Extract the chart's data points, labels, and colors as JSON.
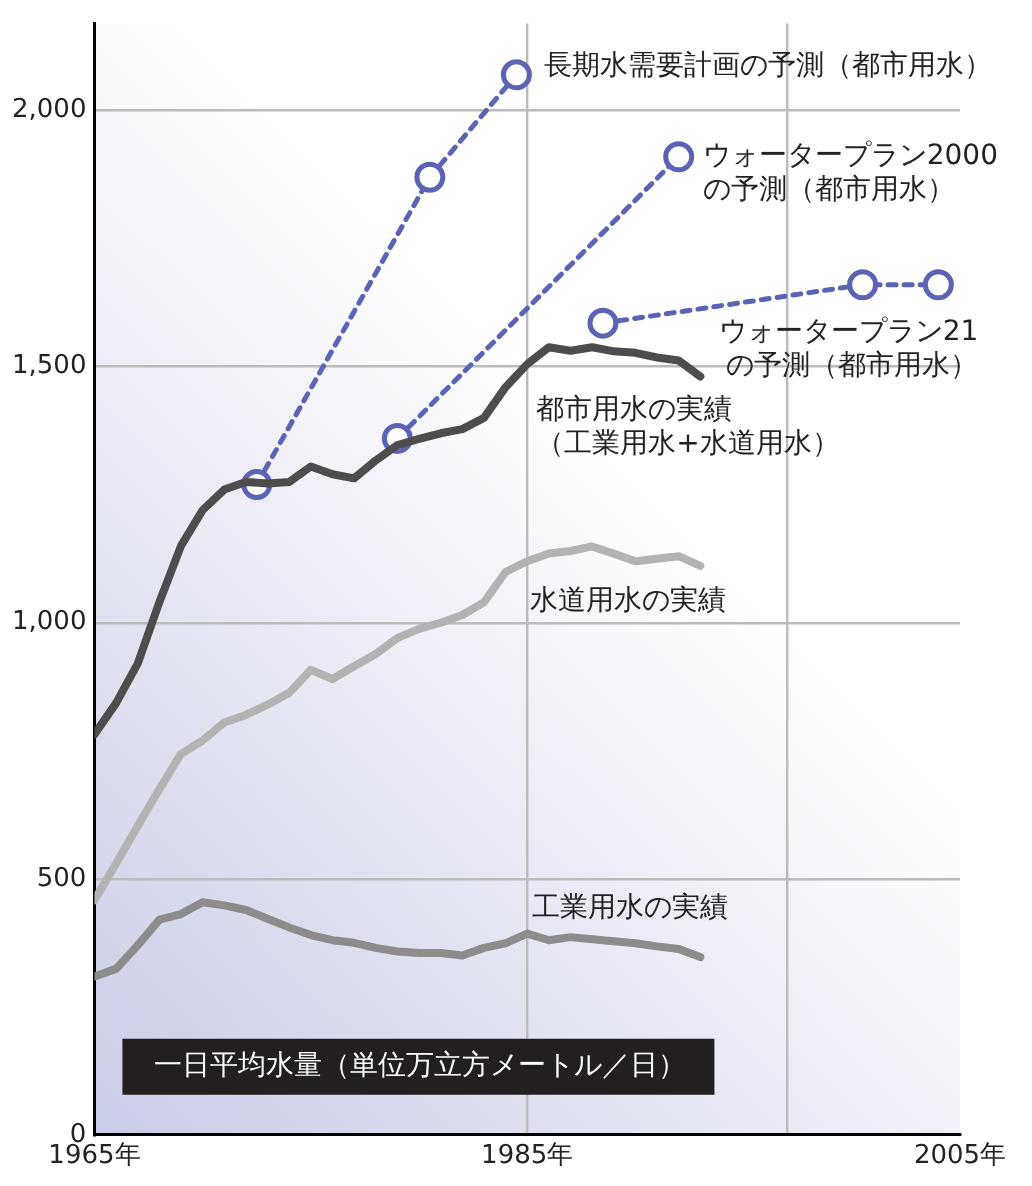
{
  "chart_data": {
    "type": "line",
    "ylabel": "一日平均水量（単位万立方メートル／日）",
    "xlim": [
      1965,
      2005
    ],
    "ylim": [
      0,
      2170
    ],
    "xticks": [
      {
        "value": 1965,
        "label": "1965年"
      },
      {
        "value": 1985,
        "label": "1985年"
      },
      {
        "value": 1997,
        "label": null
      },
      {
        "value": 2005,
        "label": "2005年"
      }
    ],
    "yticks": [
      0,
      500,
      {
        "value": 1000,
        "label": "1,000"
      },
      {
        "value": 1500,
        "label": "1,500"
      },
      {
        "value": 2000,
        "label": "2,000"
      }
    ],
    "grid": true,
    "legend": false,
    "series": [
      {
        "name": "都市用水の実績（工業用水+水道用水）",
        "color": "#4d4d4d",
        "marker": "none",
        "line_style": "solid",
        "x": [
          1965,
          1966,
          1967,
          1968,
          1969,
          1970,
          1971,
          1972,
          1973,
          1974,
          1975,
          1976,
          1977,
          1978,
          1979,
          1980,
          1981,
          1982,
          1983,
          1984,
          1985,
          1986,
          1987,
          1988,
          1989,
          1990,
          1991,
          1992,
          1993
        ],
        "values": [
          782,
          843,
          920,
          1040,
          1150,
          1220,
          1260,
          1275,
          1272,
          1275,
          1305,
          1290,
          1282,
          1317,
          1347,
          1359,
          1370,
          1378,
          1400,
          1460,
          1505,
          1538,
          1531,
          1538,
          1530,
          1527,
          1518,
          1512,
          1481
        ]
      },
      {
        "name": "水道用水の実績",
        "color": "#b3b3b3",
        "marker": "none",
        "line_style": "solid",
        "x": [
          1965,
          1966,
          1967,
          1968,
          1969,
          1970,
          1971,
          1972,
          1973,
          1974,
          1975,
          1976,
          1977,
          1978,
          1979,
          1980,
          1981,
          1982,
          1983,
          1984,
          1985,
          1986,
          1987,
          1988,
          1989,
          1990,
          1991,
          1992,
          1993
        ],
        "values": [
          458,
          530,
          603,
          675,
          744,
          770,
          805,
          820,
          840,
          863,
          908,
          890,
          915,
          939,
          970,
          988,
          1000,
          1015,
          1040,
          1099,
          1120,
          1135,
          1140,
          1149,
          1135,
          1120,
          1125,
          1130,
          1111
        ]
      },
      {
        "name": "工業用水の実績",
        "color": "#8c8c8c",
        "marker": "none",
        "line_style": "solid",
        "x": [
          1965,
          1966,
          1967,
          1968,
          1969,
          1970,
          1971,
          1972,
          1973,
          1974,
          1975,
          1976,
          1977,
          1978,
          1979,
          1980,
          1981,
          1982,
          1983,
          1984,
          1985,
          1986,
          1987,
          1988,
          1989,
          1990,
          1991,
          1992,
          1993
        ],
        "values": [
          309,
          324,
          370,
          420,
          431,
          454,
          448,
          439,
          422,
          405,
          390,
          380,
          375,
          365,
          358,
          355,
          355,
          350,
          365,
          374,
          393,
          380,
          386,
          382,
          378,
          374,
          368,
          363,
          347
        ]
      },
      {
        "name": "長期水需要計画の予測（都市用水）",
        "color": "#5b63b5",
        "marker": "circle",
        "line_style": "dotted",
        "x": [
          1972.5,
          1980.5,
          1984.5
        ],
        "values": [
          1270,
          1870,
          2070
        ]
      },
      {
        "name": "ウォータープラン2000の予測（都市用水）",
        "color": "#5b63b5",
        "marker": "circle",
        "line_style": "dotted",
        "x": [
          1979,
          1992
        ],
        "values": [
          1360,
          1910
        ]
      },
      {
        "name": "ウォータープラン21の予測（都市用水）",
        "color": "#5b63b5",
        "marker": "circle",
        "line_style": "dotted",
        "x": [
          1988.5,
          2000.5,
          2004
        ],
        "values": [
          1585,
          1660,
          1660
        ]
      }
    ]
  }
}
